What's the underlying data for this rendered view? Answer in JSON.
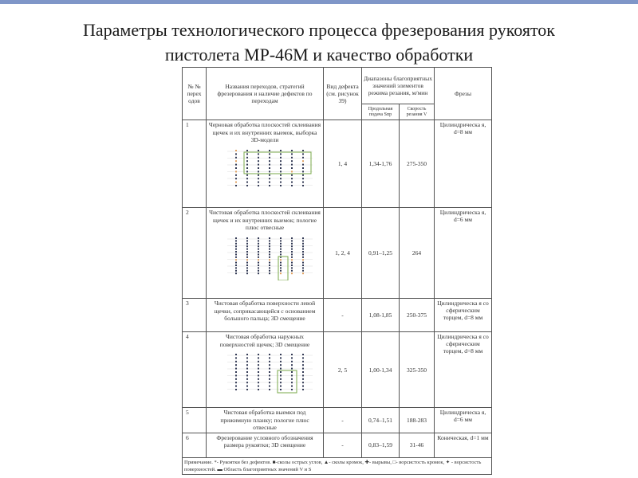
{
  "title": [
    "Параметры технологического процесса фрезерования рукояток",
    "пистолета МР-46М и качество обработки"
  ],
  "table": {
    "headers": {
      "num": "№ № перех одов",
      "name": "Названия переходов, стратегий фрезерования и наличие дефектов по переходам",
      "defect": "Вид дефекта (см. рисунок 39)",
      "ranges": "Диапазоны благоприятных значений элементов режима резания, м/мин",
      "feed": "Продольная подача Sпр",
      "speed": "Скорость резания V",
      "cutter": "Фрезы"
    },
    "rows": [
      {
        "num": "1",
        "name": "Черновая обработка плоскостей склеивания щечек и их внутренних выемок, выборка 3D-модели",
        "defect": "1, 4",
        "feed": "1,34-1,76",
        "speed": "275-350",
        "cutter": "Цилиндрическа я, d=8 мм",
        "chart": true
      },
      {
        "num": "2",
        "name": "Чистовая обработка плоскостей склеивания щечек и их внутренних выемок; пологие плюс отвесные",
        "defect": "1, 2, 4",
        "feed": "0,91–1,25",
        "speed": "264",
        "cutter": "Цилиндрическа я, d=6 мм",
        "chart": true
      },
      {
        "num": "3",
        "name": "Чистовая обработка поверхности левой щечки, соприкасающейся с основанием большого пальца; 3D смещение",
        "defect": "-",
        "feed": "1,08-1,85",
        "speed": "250-375",
        "cutter": "Цилиндрическа я со сферическим торцем, d=8 мм"
      },
      {
        "num": "4",
        "name": "Чистовая обработка наружных поверхностей щечек; 3D смещение",
        "defect": "2, 5",
        "feed": "1,00-1,34",
        "speed": "325-350",
        "cutter": "Цилиндрическа я со сферическим торцем, d=8 мм",
        "chart": true
      },
      {
        "num": "5",
        "name": "Чистовая обработка выемки под прижимную планку; пологие плюс отвесные",
        "defect": "-",
        "feed": "0,74–1,51",
        "speed": "188-283",
        "cutter": "Цилиндрическа я, d=6 мм"
      },
      {
        "num": "6",
        "name": "Фрезерование условного обозначения размера рукоятки; 3D смещение",
        "defect": "-",
        "feed": "0,83–1,59",
        "speed": "31-46",
        "cutter": "Коническая, d=1 мм"
      }
    ],
    "note": "Примечание. *- Рукоятки без дефектов. ■-сколы острых углов, ▲- сколы кромок, ✚- вырывы, □- ворсистость кромок, ✦ - ворсистость поверхностей. ▬ Область благоприятных значений V и S"
  },
  "colors": {
    "topbar": "#7f96c8",
    "region": "#7aa84a",
    "defect": "#e0a060",
    "dot": "#333a55"
  }
}
